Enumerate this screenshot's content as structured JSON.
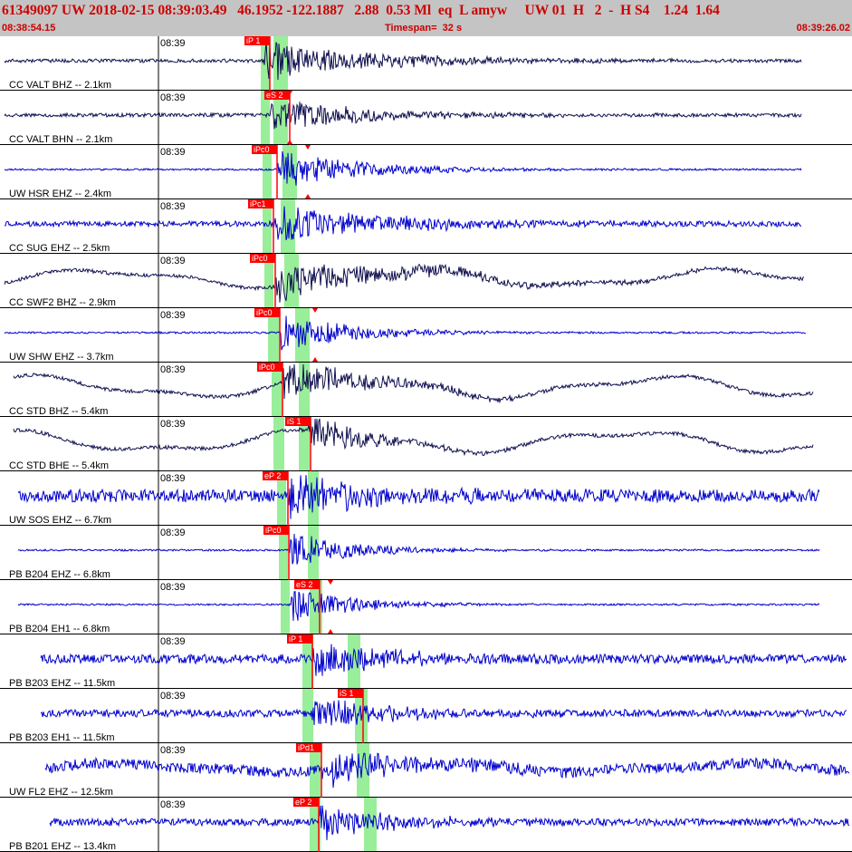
{
  "header": {
    "event_line": "61349097 UW 2018-02-15 08:39:03.49   46.1952 -122.1887   2.88  0.53 Ml  eq  L amyw     UW 01  H   2  -  H S4    1.24  1.64",
    "start_time": "08:38:54.15",
    "timespan": "Timespan=  32 s",
    "end_time": "08:39:26.02"
  },
  "colors": {
    "header_bg": "#c4c4c4",
    "header_text": "#cc0000",
    "pick_red": "#ff0000",
    "window_green": "#99ee99",
    "trace_dark": "#101050",
    "trace_blue": "#0000cc"
  },
  "traces": [
    {
      "label": "CC VALT BHZ -- 2.1km",
      "tick": "08:39",
      "color": "dark",
      "xstart": 5,
      "xend": 885,
      "amp": 2,
      "onset": 292,
      "decay": 120,
      "burst": 22,
      "low": 0,
      "picks": [
        {
          "text": "iP 1",
          "x": 298,
          "flag": "left"
        }
      ],
      "marks": [],
      "green": [
        [
          288,
          298
        ],
        [
          302,
          318
        ]
      ]
    },
    {
      "label": "CC VALT BHN -- 2.1km",
      "tick": "08:39",
      "color": "dark",
      "xstart": 5,
      "xend": 885,
      "amp": 2,
      "onset": 298,
      "decay": 110,
      "burst": 18,
      "low": 0,
      "picks": [
        {
          "text": "eS 2",
          "x": 320,
          "flag": "left"
        }
      ],
      "marks": [
        320
      ],
      "green": [
        [
          288,
          298
        ],
        [
          302,
          318
        ]
      ]
    },
    {
      "label": "UW HSR EHZ -- 2.4km",
      "tick": "08:39",
      "color": "blue",
      "xstart": 5,
      "xend": 885,
      "amp": 1,
      "onset": 306,
      "decay": 95,
      "burst": 22,
      "low": 0,
      "picks": [
        {
          "text": "iPc0",
          "x": 306,
          "flag": "left"
        }
      ],
      "marks": [
        340
      ],
      "green": [
        [
          290,
          300
        ],
        [
          312,
          328
        ]
      ]
    },
    {
      "label": "CC SUG EHZ -- 2.5km",
      "tick": "08:39",
      "color": "blue",
      "xstart": 5,
      "xend": 885,
      "amp": 3,
      "onset": 302,
      "decay": 130,
      "burst": 22,
      "low": 0,
      "picks": [
        {
          "text": "iPc1",
          "x": 302,
          "flag": "left"
        }
      ],
      "marks": [],
      "green": [
        [
          290,
          300
        ],
        [
          310,
          326
        ]
      ]
    },
    {
      "label": "CC SWF2 BHZ -- 2.9km",
      "tick": "08:39",
      "color": "dark",
      "xstart": 5,
      "xend": 888,
      "amp": 2,
      "onset": 304,
      "decay": 150,
      "burst": 20,
      "low": 8,
      "picks": [
        {
          "text": "iPc0",
          "x": 304,
          "flag": "left"
        }
      ],
      "marks": [],
      "green": [
        [
          292,
          302
        ],
        [
          314,
          330
        ]
      ]
    },
    {
      "label": "UW SHW EHZ -- 3.7km",
      "tick": "08:39",
      "color": "blue",
      "xstart": 5,
      "xend": 890,
      "amp": 1,
      "onset": 309,
      "decay": 80,
      "burst": 22,
      "low": 0,
      "picks": [
        {
          "text": "iPc0",
          "x": 309,
          "flag": "left"
        }
      ],
      "marks": [
        348
      ],
      "green": [
        [
          296,
          308
        ],
        [
          326,
          342
        ]
      ]
    },
    {
      "label": "CC STD BHZ -- 5.4km",
      "tick": "08:39",
      "color": "dark",
      "xstart": 15,
      "xend": 898,
      "amp": 2,
      "onset": 312,
      "decay": 95,
      "burst": 22,
      "low": 10,
      "picks": [
        {
          "text": "iPc0",
          "x": 312,
          "flag": "left"
        }
      ],
      "marks": [],
      "green": [
        [
          300,
          312
        ],
        [
          330,
          342
        ]
      ]
    },
    {
      "label": "CC STD BHE -- 5.4km",
      "tick": "08:39",
      "color": "dark",
      "xstart": 15,
      "xend": 898,
      "amp": 2,
      "onset": 340,
      "decay": 60,
      "burst": 24,
      "low": 10,
      "picks": [
        {
          "text": "iS 1",
          "x": 343,
          "flag": "left"
        }
      ],
      "marks": [],
      "green": [
        [
          302,
          314
        ],
        [
          330,
          342
        ]
      ]
    },
    {
      "label": "UW SOS EHZ -- 6.7km",
      "tick": "08:39",
      "color": "blue",
      "xstart": 20,
      "xend": 905,
      "amp": 7,
      "onset": 318,
      "decay": 100,
      "burst": 22,
      "low": 0,
      "picks": [
        {
          "text": "eP 2",
          "x": 318,
          "flag": "left"
        }
      ],
      "marks": [],
      "green": [
        [
          306,
          316
        ],
        [
          340,
          352
        ]
      ]
    },
    {
      "label": "PB B204 EHZ -- 6.8km",
      "tick": "08:39",
      "color": "blue",
      "xstart": 20,
      "xend": 905,
      "amp": 1,
      "onset": 319,
      "decay": 70,
      "burst": 22,
      "low": 0,
      "picks": [
        {
          "text": "iPc0",
          "x": 319,
          "flag": "left"
        }
      ],
      "marks": [],
      "green": [
        [
          308,
          318
        ],
        [
          340,
          352
        ]
      ]
    },
    {
      "label": "PB B204 EH1 -- 6.8km",
      "tick": "08:39",
      "color": "blue",
      "xstart": 20,
      "xend": 905,
      "amp": 1,
      "onset": 319,
      "decay": 70,
      "burst": 20,
      "low": 0,
      "picks": [
        {
          "text": "eS 2",
          "x": 353,
          "flag": "left"
        }
      ],
      "marks": [
        365
      ],
      "green": [
        [
          310,
          320
        ],
        [
          342,
          356
        ]
      ]
    },
    {
      "label": "PB B203 EHZ -- 11.5km",
      "tick": "08:39",
      "color": "blue",
      "xstart": 45,
      "xend": 935,
      "amp": 5,
      "onset": 345,
      "decay": 90,
      "burst": 18,
      "low": 0,
      "picks": [
        {
          "text": "iP 1",
          "x": 345,
          "flag": "left"
        }
      ],
      "marks": [],
      "green": [
        [
          334,
          346
        ],
        [
          384,
          398
        ]
      ]
    },
    {
      "label": "PB B203 EH1 -- 11.5km",
      "tick": "08:39",
      "color": "blue",
      "xstart": 45,
      "xend": 935,
      "amp": 4,
      "onset": 345,
      "decay": 90,
      "burst": 18,
      "low": 0,
      "picks": [
        {
          "text": "iS 1",
          "x": 401,
          "flag": "left"
        }
      ],
      "marks": [],
      "green": [
        [
          334,
          346
        ],
        [
          392,
          406
        ]
      ]
    },
    {
      "label": "UW FL2 EHZ -- 12.5km",
      "tick": "08:39",
      "color": "blue",
      "xstart": 50,
      "xend": 938,
      "amp": 6,
      "onset": 355,
      "decay": 90,
      "burst": 18,
      "low": 4,
      "picks": [
        {
          "text": "iPd1",
          "x": 355,
          "flag": "left"
        }
      ],
      "marks": [],
      "green": [
        [
          342,
          354
        ],
        [
          394,
          408
        ]
      ]
    },
    {
      "label": "PB B201 EHZ -- 13.4km",
      "tick": "08:39",
      "color": "blue",
      "xstart": 55,
      "xend": 938,
      "amp": 4,
      "onset": 352,
      "decay": 90,
      "burst": 18,
      "low": 0,
      "picks": [
        {
          "text": "eP 2",
          "x": 352,
          "flag": "left"
        }
      ],
      "marks": [],
      "green": [
        [
          342,
          354
        ],
        [
          402,
          416
        ]
      ]
    }
  ]
}
